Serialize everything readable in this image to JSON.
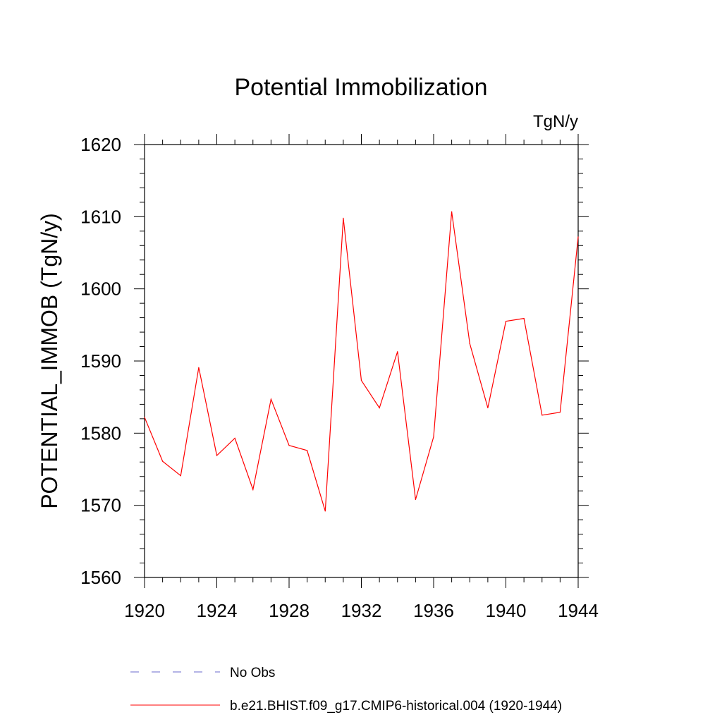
{
  "chart_data": {
    "type": "line",
    "title": "Potential Immobilization",
    "units_label": "TgN/y",
    "xlabel": "",
    "ylabel": "POTENTIAL_IMMOB  (TgN/y)",
    "xlim": [
      1920,
      1944
    ],
    "ylim": [
      1560,
      1620
    ],
    "x_ticks": [
      1920,
      1924,
      1928,
      1932,
      1936,
      1940,
      1944
    ],
    "y_ticks": [
      1560,
      1570,
      1580,
      1590,
      1600,
      1610,
      1620
    ],
    "grid": false,
    "legend_position": "bottom",
    "series": [
      {
        "name": "b.e21.BHIST.f09_g17.CMIP6-historical.004 (1920-1944)",
        "color": "#ff0000",
        "style": "solid",
        "x": [
          1920,
          1921,
          1922,
          1923,
          1924,
          1925,
          1926,
          1927,
          1928,
          1929,
          1930,
          1931,
          1932,
          1933,
          1934,
          1935,
          1936,
          1937,
          1938,
          1939,
          1940,
          1941,
          1942,
          1943,
          1944
        ],
        "values": [
          1582.2,
          1576.1,
          1574.1,
          1589.1,
          1576.9,
          1579.3,
          1572.2,
          1584.7,
          1578.3,
          1577.6,
          1569.2,
          1609.8,
          1587.3,
          1583.5,
          1591.3,
          1570.8,
          1579.5,
          1610.7,
          1592.4,
          1583.5,
          1595.5,
          1595.9,
          1582.5,
          1582.9,
          1607.2
        ]
      }
    ],
    "legend": [
      {
        "label": "No Obs",
        "color": "#6a6acd",
        "style": "dashed"
      },
      {
        "label": "b.e21.BHIST.f09_g17.CMIP6-historical.004 (1920-1944)",
        "color": "#ff0000",
        "style": "solid"
      }
    ]
  }
}
